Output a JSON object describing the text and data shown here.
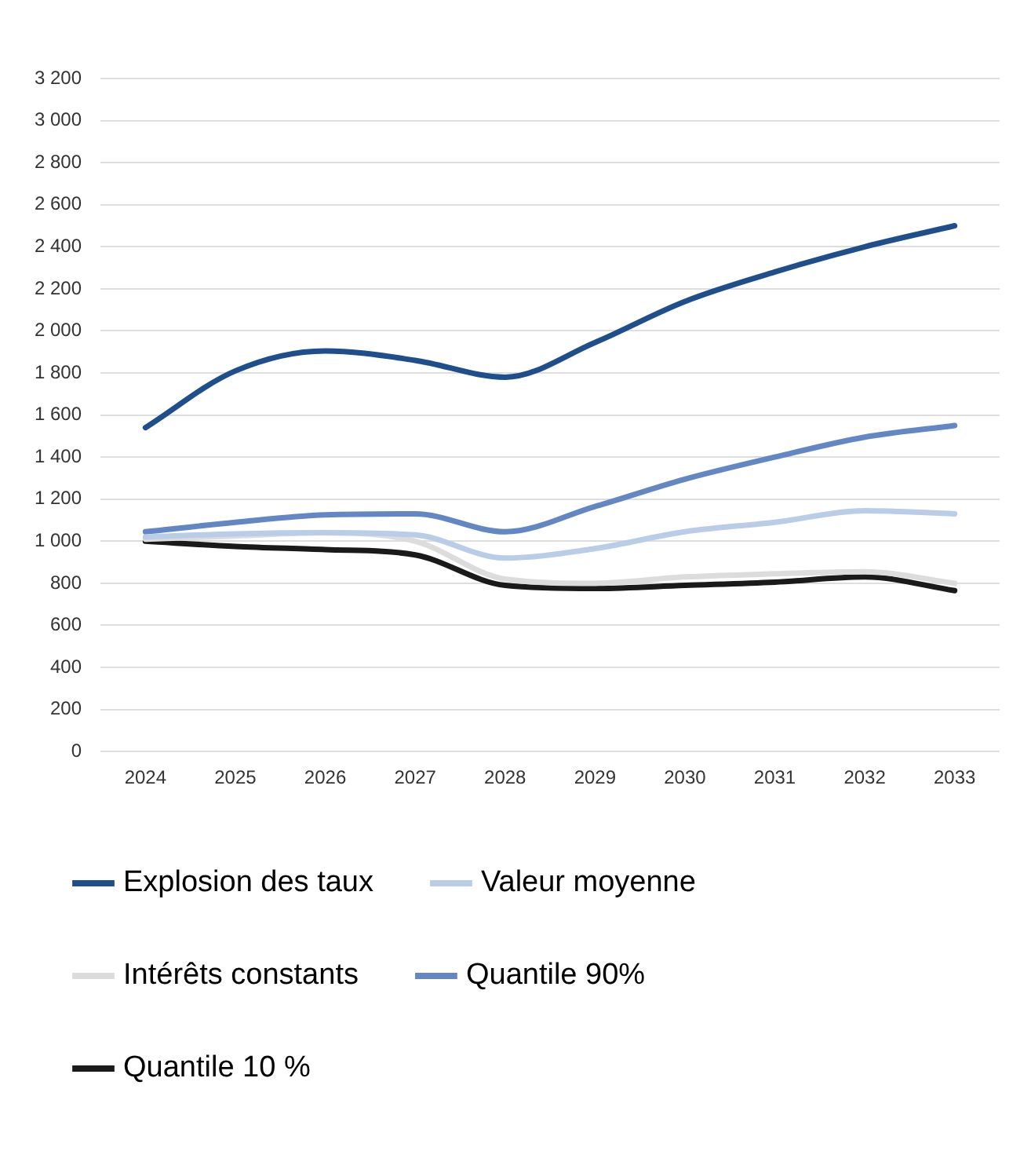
{
  "chart_data": {
    "type": "line",
    "categories": [
      "2024",
      "2025",
      "2026",
      "2027",
      "2028",
      "2029",
      "2030",
      "2031",
      "2032",
      "2033"
    ],
    "series": [
      {
        "name": "Explosion des taux",
        "color": "#1f4e8c",
        "values": [
          1540,
          1810,
          1905,
          1860,
          1780,
          1945,
          2140,
          2280,
          2400,
          2500
        ]
      },
      {
        "name": "Valeur moyenne",
        "color": "#b9cde8",
        "values": [
          1020,
          1035,
          1040,
          1030,
          920,
          965,
          1045,
          1090,
          1145,
          1130
        ]
      },
      {
        "name": "Intérêts constants",
        "color": "#dcdcdc",
        "values": [
          1010,
          1025,
          1040,
          1000,
          820,
          800,
          830,
          845,
          855,
          800
        ]
      },
      {
        "name": "Quantile 90%",
        "color": "#6287c4",
        "values": [
          1045,
          1090,
          1125,
          1130,
          1045,
          1165,
          1295,
          1400,
          1495,
          1550
        ]
      },
      {
        "name": "Quantile 10 %",
        "color": "#1a1a1a",
        "values": [
          1000,
          975,
          960,
          935,
          790,
          775,
          790,
          805,
          830,
          765
        ]
      }
    ],
    "ylim": [
      0,
      3200
    ],
    "yticks": [
      0,
      200,
      400,
      600,
      800,
      {
        "value": 1000,
        "label": "1 000"
      },
      {
        "value": 1200,
        "label": "1 200"
      },
      {
        "value": 1400,
        "label": "1 400"
      },
      {
        "value": 1600,
        "label": "1 600"
      },
      {
        "value": 1800,
        "label": "1 800"
      },
      {
        "value": 2000,
        "label": "2 000"
      },
      {
        "value": 2200,
        "label": "2 200"
      },
      {
        "value": 2400,
        "label": "2 400"
      },
      {
        "value": 2600,
        "label": "2 600"
      },
      {
        "value": 2800,
        "label": "2 800"
      },
      {
        "value": 3000,
        "label": "3 000"
      },
      {
        "value": 3200,
        "label": "3 200"
      }
    ],
    "grid": "y",
    "legend": "bottom",
    "marker": "none",
    "line_style": "solid"
  }
}
